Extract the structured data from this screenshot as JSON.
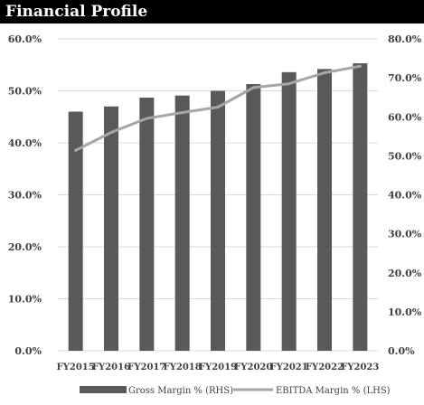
{
  "title": "Financial Profile",
  "chart_data": {
    "type": "bar",
    "categories": [
      "FY2015",
      "FY2016",
      "FY2017",
      "FY2018",
      "FY2019",
      "FY2020",
      "FY2021",
      "FY2022",
      "FY2023"
    ],
    "series": [
      {
        "name": "Gross Margin % (RHS)",
        "kind": "bar",
        "axis": "left",
        "values": [
          46.0,
          47.0,
          48.7,
          49.1,
          50.0,
          51.3,
          53.6,
          54.2,
          55.3
        ]
      },
      {
        "name": "EBITDA Margin % (LHS)",
        "kind": "line",
        "axis": "right",
        "values": [
          51.4,
          56.0,
          59.6,
          61.1,
          62.5,
          67.5,
          68.5,
          71.3,
          73.0
        ]
      }
    ],
    "left_axis": {
      "ylim": [
        0,
        60
      ],
      "ticks": [
        "0.0%",
        "10.0%",
        "20.0%",
        "30.0%",
        "40.0%",
        "50.0%",
        "60.0%"
      ]
    },
    "right_axis": {
      "ylim": [
        0,
        80
      ],
      "ticks": [
        "0.0%",
        "10.0%",
        "20.0%",
        "30.0%",
        "40.0%",
        "50.0%",
        "60.0%",
        "70.0%",
        "80.0%"
      ]
    },
    "legend": "bottom",
    "grid": true,
    "colors": {
      "bar": "#595959",
      "line": "#a6a6a6",
      "grid": "#d9d9d9",
      "title_bg": "#000000"
    }
  }
}
